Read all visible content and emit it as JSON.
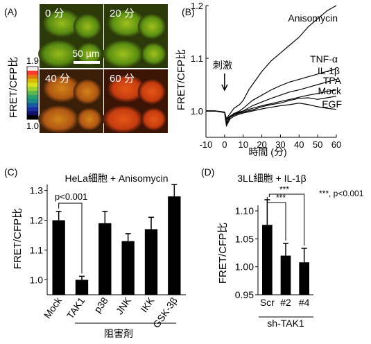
{
  "panel_a": {
    "panel_label": "(A)",
    "ylabel": "FRET/CFP比",
    "colorbar": {
      "max_label": "1.9",
      "min_label": "1.0",
      "colors": [
        "#f5f0f0",
        "#ff3b30",
        "#e07a10",
        "#d8b800",
        "#d8e020",
        "#a0d030",
        "#5db84a",
        "#2aa070",
        "#1c8888",
        "#1a5aa0",
        "#1a30a0",
        "#10106a",
        "#000000"
      ]
    },
    "tiles": [
      {
        "time_label": "0 分",
        "base": "#2c3a0a",
        "cell": "#5a8e12",
        "center": "#9fc21c"
      },
      {
        "time_label": "20 分",
        "base": "#2c3a0a",
        "cell": "#5e9512",
        "center": "#a7c81e"
      },
      {
        "time_label": "40 分",
        "base": "#3a1e08",
        "cell": "#b65a14",
        "center": "#d98a1a"
      },
      {
        "time_label": "60 分",
        "base": "#3c1406",
        "cell": "#cc3e10",
        "center": "#ee5a16"
      }
    ],
    "scale_bar_label": "50 µm"
  },
  "chart_data": [
    {
      "panel_label": "(B)",
      "type": "line",
      "xlabel": "時間 (分)",
      "ylabel": "FRET/CFP比",
      "xlim": [
        -10,
        60
      ],
      "ylim": [
        0.95,
        1.2
      ],
      "xticks": [
        -10,
        0,
        10,
        20,
        30,
        40,
        50,
        60
      ],
      "yticks": [
        1.0,
        1.1,
        1.2
      ],
      "annotation": "刺激",
      "series": [
        {
          "name": "Anisomycin",
          "x": [
            -10,
            -5,
            0,
            1,
            3,
            5,
            8,
            10,
            13,
            15,
            18,
            20,
            25,
            30,
            35,
            40,
            45,
            50,
            55,
            60
          ],
          "y": [
            1.0,
            1.0,
            0.998,
            0.985,
            0.995,
            1.005,
            1.012,
            1.02,
            1.04,
            1.05,
            1.065,
            1.075,
            1.095,
            1.11,
            1.125,
            1.14,
            1.16,
            1.175,
            1.19,
            1.2
          ]
        },
        {
          "name": "TNF-α",
          "x": [
            -10,
            -5,
            0,
            1,
            3,
            5,
            8,
            10,
            15,
            20,
            25,
            30,
            35,
            40,
            45,
            50,
            55,
            60
          ],
          "y": [
            1.0,
            1.0,
            0.998,
            0.985,
            0.99,
            0.995,
            1.0,
            1.005,
            1.02,
            1.03,
            1.04,
            1.048,
            1.055,
            1.06,
            1.065,
            1.07,
            1.075,
            1.08
          ]
        },
        {
          "name": "IL-1β",
          "x": [
            -10,
            -5,
            0,
            1,
            3,
            5,
            8,
            10,
            15,
            20,
            25,
            30,
            35,
            40,
            45,
            50,
            55,
            60
          ],
          "y": [
            1.0,
            1.0,
            0.997,
            0.982,
            0.99,
            0.995,
            0.998,
            1.0,
            1.01,
            1.017,
            1.024,
            1.03,
            1.036,
            1.04,
            1.045,
            1.05,
            1.055,
            1.06
          ]
        },
        {
          "name": "TPA",
          "x": [
            -10,
            -5,
            0,
            1,
            3,
            5,
            8,
            10,
            15,
            20,
            25,
            30,
            35,
            40,
            45,
            50,
            55,
            60
          ],
          "y": [
            1.0,
            1.0,
            0.997,
            0.978,
            0.988,
            0.993,
            0.997,
            1.0,
            1.005,
            1.01,
            1.014,
            1.018,
            1.022,
            1.026,
            1.03,
            1.033,
            1.037,
            1.04
          ]
        },
        {
          "name": "Mock",
          "x": [
            -10,
            -5,
            0,
            1,
            3,
            5,
            8,
            10,
            15,
            20,
            25,
            30,
            35,
            40,
            45,
            50,
            55,
            60
          ],
          "y": [
            1.0,
            1.0,
            0.997,
            0.975,
            0.988,
            0.992,
            0.996,
            0.998,
            1.002,
            1.008,
            1.012,
            1.015,
            1.02,
            1.024,
            1.025,
            1.022,
            1.025,
            1.028
          ]
        },
        {
          "name": "EGF",
          "x": [
            -10,
            -5,
            0,
            1,
            3,
            5,
            8,
            10,
            15,
            20,
            25,
            30,
            35,
            40,
            45,
            50,
            55,
            60
          ],
          "y": [
            1.0,
            1.0,
            0.997,
            0.972,
            0.985,
            0.99,
            0.994,
            0.996,
            1.0,
            1.004,
            1.007,
            1.01,
            1.012,
            1.015,
            1.012,
            1.008,
            1.005,
            1.003
          ]
        }
      ]
    },
    {
      "panel_label": "(C)",
      "type": "bar",
      "title": "HeLa細胞 + Anisomycin",
      "ylabel": "FRET/CFP比",
      "ylim": [
        0.95,
        1.32
      ],
      "yticks": [
        1.0,
        1.1,
        1.2,
        1.3
      ],
      "categories": [
        "Mock",
        "TAK1",
        "p38",
        "JNK",
        "IKK",
        "GSK-3β"
      ],
      "values": [
        1.2,
        1.0,
        1.19,
        1.13,
        1.17,
        1.28
      ],
      "errors": [
        0.03,
        0.012,
        0.04,
        0.025,
        0.04,
        0.04
      ],
      "bracket_label": "p<0.001",
      "group_label": "阻害剤"
    },
    {
      "panel_label": "(D)",
      "type": "bar",
      "title": "3LL細胞 + IL-1β",
      "ylabel": "FRET/CFP比",
      "ylim": [
        0.95,
        1.11
      ],
      "yticks": [
        0.95,
        1.0,
        1.05,
        1.1
      ],
      "categories": [
        "Scr",
        "#2",
        "#4"
      ],
      "values": [
        1.075,
        1.02,
        1.008
      ],
      "errors": [
        0.045,
        0.022,
        0.025
      ],
      "significance": [
        "***",
        "***"
      ],
      "legend_note": "***, p<0.001",
      "group_label": "sh-TAK1"
    }
  ]
}
